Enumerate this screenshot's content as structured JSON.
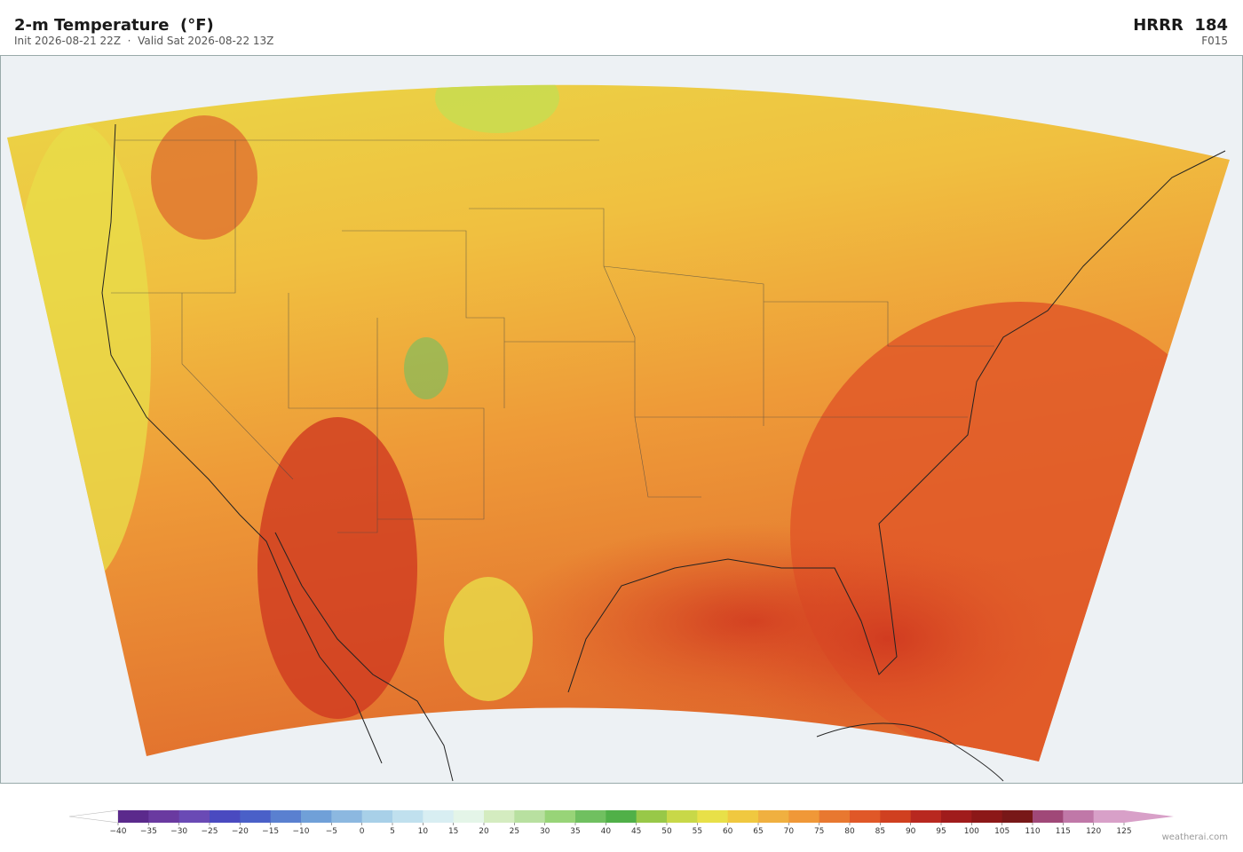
{
  "header": {
    "title": "2-m Temperature  (°F)",
    "subtitle": "Init 2026-08-21 22Z  ·  Valid Sat 2026-08-22 13Z",
    "model": "HRRR  184",
    "forecast_hour": "F015"
  },
  "colorbar": {
    "ticks": [
      {
        "value": -40,
        "label": "−40"
      },
      {
        "value": -35,
        "label": "−35"
      },
      {
        "value": -30,
        "label": "−30"
      },
      {
        "value": -25,
        "label": "−25"
      },
      {
        "value": -20,
        "label": "−20"
      },
      {
        "value": -15,
        "label": "−15"
      },
      {
        "value": -10,
        "label": "−10"
      },
      {
        "value": -5,
        "label": "−5"
      },
      0,
      5,
      10,
      15,
      20,
      25,
      30,
      35,
      40,
      45,
      50,
      55,
      60,
      65,
      70,
      75,
      80,
      85,
      90,
      95,
      100,
      105,
      110,
      115,
      120,
      125
    ],
    "colors": [
      "#5b2a8c",
      "#6a3aa0",
      "#6a4ab5",
      "#4a4ac0",
      "#4a60c8",
      "#5a80d0",
      "#70a0d8",
      "#8cb8e0",
      "#a8d0e8",
      "#c0e0ee",
      "#d8eef2",
      "#e4f5e8",
      "#d4ecc0",
      "#b8e0a0",
      "#98d478",
      "#70c060",
      "#50b048",
      "#98c848",
      "#c8d848",
      "#e8e048",
      "#f0c840",
      "#f0b040",
      "#f09838",
      "#e87830",
      "#e05828",
      "#d04020",
      "#b82820",
      "#a01c1c",
      "#8c1818",
      "#781818",
      "#a04878",
      "#c078a8",
      "#d8a0c8"
    ]
  },
  "credit": "weatherai.com"
}
